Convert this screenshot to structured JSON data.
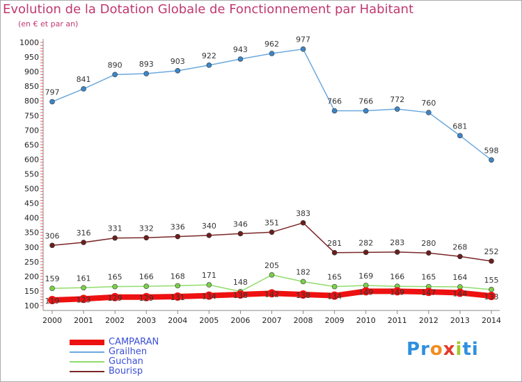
{
  "title": "Evolution de la Dotation Globale de Fonctionnement par Habitant",
  "subtitle": "(en € et par an)",
  "logo": {
    "letters": [
      "P",
      "r",
      "o",
      "x",
      "i",
      "t",
      "i"
    ],
    "colors": [
      "#2f8fe0",
      "#2f8fe0",
      "#f28c1e",
      "#e23a2a",
      "#9ecb2d",
      "#2f8fe0",
      "#2f8fe0"
    ]
  },
  "legend": [
    {
      "name": "CAMPARAN",
      "color": "#ee1111"
    },
    {
      "name": "Grailhen",
      "color": "#6aa8dd"
    },
    {
      "name": "Guchan",
      "color": "#8fdc6a"
    },
    {
      "name": "Bourisp",
      "color": "#7a2525"
    }
  ],
  "chart_data": {
    "type": "line",
    "title": "Evolution de la Dotation Globale de Fonctionnement par Habitant",
    "subtitle": "(en € et par an)",
    "x": [
      "2000",
      "2001",
      "2002",
      "2003",
      "2004",
      "2005",
      "2006",
      "2007",
      "2008",
      "2009",
      "2010",
      "2011",
      "2012",
      "2013",
      "2014"
    ],
    "ylim": [
      100,
      1000
    ],
    "yticks": [
      100,
      150,
      200,
      250,
      300,
      350,
      400,
      450,
      500,
      550,
      600,
      650,
      700,
      750,
      800,
      850,
      900,
      950,
      1000
    ],
    "grid": false,
    "legend_position": "bottom-left",
    "series": [
      {
        "name": "Grailhen",
        "color": "#6aa8dd",
        "marker": "#3d86c8",
        "values": [
          797,
          841,
          890,
          893,
          903,
          922,
          943,
          962,
          977,
          766,
          766,
          772,
          760,
          681,
          598
        ],
        "labels": [
          "797",
          "841",
          "890",
          "893",
          "903",
          "922",
          "943",
          "962",
          "977",
          "766",
          "766",
          "772",
          "760",
          "681",
          "598"
        ]
      },
      {
        "name": "Bourisp",
        "color": "#7a2525",
        "marker": "#6a1f1f",
        "values": [
          306,
          316,
          331,
          332,
          336,
          340,
          346,
          351,
          383,
          281,
          282,
          283,
          280,
          268,
          252
        ],
        "labels": [
          "306",
          "316",
          "331",
          "332",
          "336",
          "340",
          "346",
          "351",
          "383",
          "281",
          "282",
          "283",
          "280",
          "268",
          "252"
        ]
      },
      {
        "name": "Guchan",
        "color": "#8fdc6a",
        "marker": "#7ccf4a",
        "values": [
          159,
          161,
          165,
          166,
          168,
          171,
          148,
          205,
          182,
          165,
          169,
          166,
          165,
          164,
          155
        ],
        "labels": [
          "159",
          "161",
          "165",
          "166",
          "168",
          "171",
          "148",
          "205",
          "182",
          "165",
          "169",
          "166",
          "165",
          "164",
          "155"
        ]
      },
      {
        "name": "CAMPARAN",
        "color": "#ee1111",
        "marker": "#ee1111",
        "values": [
          119,
          123,
          129,
          129,
          131,
          134,
          138,
          142,
          138,
          134,
          149,
          149,
          147,
          144,
          133
        ],
        "labels": [
          "119",
          "123",
          "129",
          "129",
          "131",
          "134",
          "138",
          "142",
          "138",
          "134",
          "149",
          "149",
          "147",
          "144",
          "133"
        ]
      }
    ]
  }
}
